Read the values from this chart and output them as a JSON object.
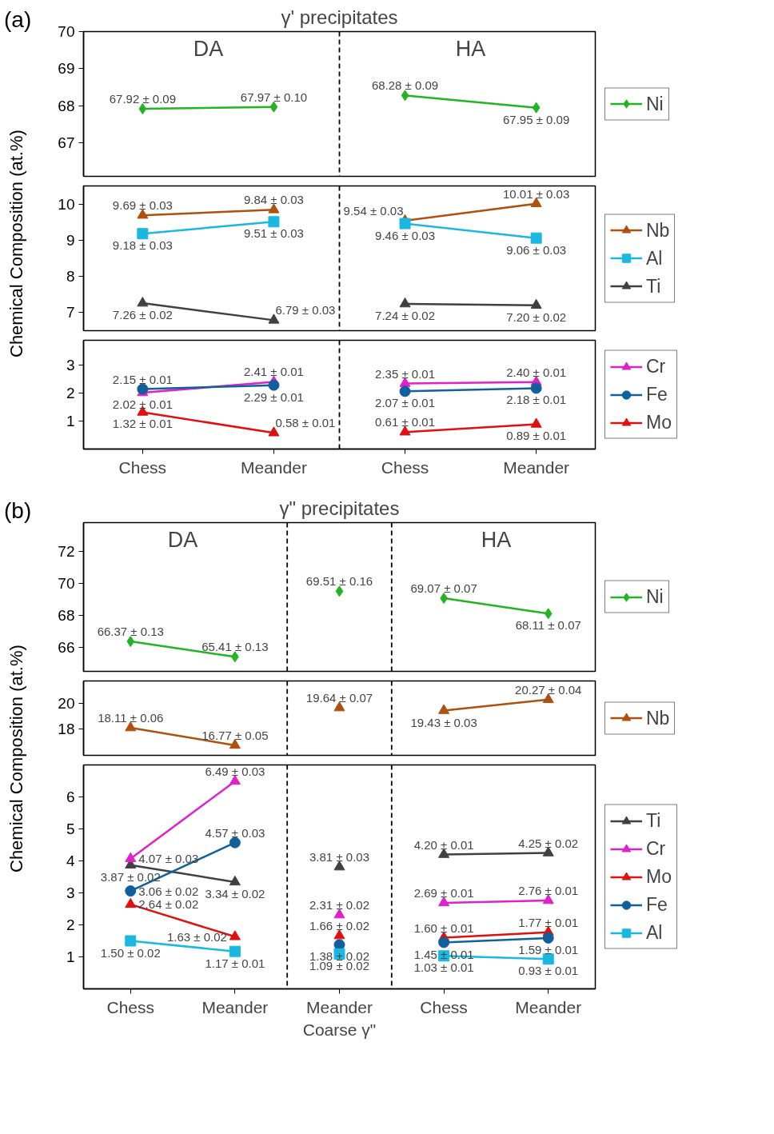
{
  "chart_data": [
    {
      "type": "line",
      "title": "γ' precipitates",
      "annotations": [
        "(a)",
        "DA",
        "HA"
      ],
      "categories": [
        "Chess",
        "Meander",
        "Chess",
        "Meander"
      ],
      "tick_labels": "y",
      "ylim": [
        66.1,
        70
      ],
      "yticks": [
        67,
        68,
        69,
        70
      ],
      "legend": "right",
      "series": [
        {
          "name": "Ni",
          "color": "#22b422",
          "marker": "diamond",
          "values": [
            67.92,
            67.97,
            68.28,
            67.95
          ],
          "value_labels": [
            "67.92 ± 0.09",
            "67.97 ± 0.10",
            "68.28 ± 0.09",
            "67.95 ± 0.09"
          ]
        }
      ]
    },
    {
      "type": "line",
      "categories": [
        "Chess",
        "Meander",
        "Chess",
        "Meander"
      ],
      "tick_labels": "y",
      "ylabel": "Chemical Composition (at.%)",
      "ylim": [
        6.5,
        10.5
      ],
      "yticks": [
        7,
        8,
        9,
        10
      ],
      "legend": "right",
      "series": [
        {
          "name": "Nb",
          "color": "#b0500e",
          "marker": "triangle",
          "values": [
            9.69,
            9.84,
            9.54,
            10.01
          ],
          "value_labels": [
            "9.69 ± 0.03",
            "9.84 ± 0.03",
            "9.54 ± 0.03",
            "10.01 ± 0.03"
          ]
        },
        {
          "name": "Al",
          "color": "#1ab8e0",
          "marker": "square",
          "values": [
            9.18,
            9.51,
            9.46,
            9.06
          ],
          "value_labels": [
            "9.18 ± 0.03",
            "9.51 ± 0.03",
            "9.46 ± 0.03",
            "9.06 ± 0.03"
          ]
        },
        {
          "name": "Ti",
          "color": "#404040",
          "marker": "triangle",
          "values": [
            7.26,
            6.79,
            7.24,
            7.2
          ],
          "value_labels": [
            "7.26 ± 0.02",
            "6.79 ± 0.03",
            "7.24 ± 0.02",
            "7.20 ± 0.02"
          ]
        }
      ]
    },
    {
      "type": "line",
      "categories": [
        "Chess",
        "Meander",
        "Chess",
        "Meander"
      ],
      "ylim": [
        0,
        3.9
      ],
      "yticks": [
        1,
        2,
        3
      ],
      "legend": "right",
      "series": [
        {
          "name": "Cr",
          "color": "#e020c8",
          "marker": "triangle",
          "values": [
            2.02,
            2.41,
            2.35,
            2.4
          ],
          "value_labels": [
            "2.02 ± 0.01",
            "2.41 ± 0.01",
            "2.35 ± 0.01",
            "2.40 ± 0.01"
          ]
        },
        {
          "name": "Fe",
          "color": "#10609e",
          "marker": "circle",
          "values": [
            2.15,
            2.29,
            2.07,
            2.18
          ],
          "value_labels": [
            "2.15 ± 0.01",
            "2.29 ± 0.01",
            "2.07 ± 0.01",
            "2.18 ± 0.01"
          ]
        },
        {
          "name": "Mo",
          "color": "#e01010",
          "marker": "triangle",
          "values": [
            1.32,
            0.58,
            0.61,
            0.89
          ],
          "value_labels": [
            "1.32 ± 0.01",
            "0.58 ± 0.01",
            "0.61 ± 0.01",
            "0.89 ± 0.01"
          ]
        }
      ]
    },
    {
      "type": "line",
      "title": "γ\" precipitates",
      "annotations": [
        "(b)",
        "DA",
        "HA"
      ],
      "categories": [
        "Chess",
        "Meander",
        "Meander",
        "Chess",
        "Meander"
      ],
      "tick_labels": "y",
      "ylim": [
        64.5,
        73.8
      ],
      "yticks": [
        66,
        68,
        70,
        72
      ],
      "legend": "right",
      "series": [
        {
          "name": "Ni",
          "color": "#22b422",
          "marker": "diamond",
          "values": [
            66.37,
            65.41,
            null,
            69.07,
            68.11
          ],
          "value_labels": [
            "66.37 ± 0.13",
            "65.41 ± 0.13",
            null,
            "69.07 ± 0.07",
            "68.11 ± 0.07"
          ]
        },
        {
          "type": "scatter",
          "color": "#22b422",
          "marker": "diamond",
          "values": [
            null,
            null,
            69.51,
            null,
            null
          ],
          "value_labels": [
            null,
            null,
            "69.51 ± 0.16",
            null,
            null
          ]
        }
      ]
    },
    {
      "type": "line",
      "categories": [
        "Chess",
        "Meander",
        "Meander",
        "Chess",
        "Meander"
      ],
      "tick_labels": "y",
      "ylim": [
        16.0,
        21.7
      ],
      "yticks": [
        18,
        20
      ],
      "legend": "right",
      "series": [
        {
          "name": "Nb",
          "color": "#b0500e",
          "marker": "triangle",
          "values": [
            18.11,
            16.77,
            null,
            19.43,
            20.27
          ],
          "value_labels": [
            "18.11 ± 0.06",
            "16.77 ± 0.05",
            null,
            "19.43 ± 0.03",
            "20.27 ± 0.04"
          ]
        },
        {
          "type": "scatter",
          "color": "#b0500e",
          "marker": "triangle",
          "values": [
            null,
            null,
            19.64,
            null,
            null
          ],
          "value_labels": [
            null,
            null,
            "19.64 ± 0.07",
            null,
            null
          ]
        }
      ]
    },
    {
      "type": "line",
      "categories": [
        "Chess",
        "Meander",
        "Meander",
        "Chess",
        "Meander"
      ],
      "xlabel": "Coarse γ\"",
      "ylabel": "Chemical Composition (at.%)",
      "ylim": [
        0,
        7.0
      ],
      "yticks": [
        1,
        2,
        3,
        4,
        5,
        6
      ],
      "legend": "right",
      "series": [
        {
          "name": "Ti",
          "color": "#404040",
          "marker": "triangle",
          "values": [
            3.87,
            3.34,
            null,
            4.2,
            4.25
          ],
          "value_labels": [
            "3.87 ± 0.02",
            "3.34 ± 0.02",
            null,
            "4.20 ± 0.01",
            "4.25 ± 0.02"
          ]
        },
        {
          "name": "Cr",
          "color": "#e020c8",
          "marker": "triangle",
          "values": [
            4.07,
            6.49,
            null,
            2.69,
            2.76
          ],
          "value_labels": [
            "4.07 ± 0.03",
            "6.49 ± 0.03",
            null,
            "2.69 ± 0.01",
            "2.76 ± 0.01"
          ]
        },
        {
          "name": "Mo",
          "color": "#e01010",
          "marker": "triangle",
          "values": [
            2.64,
            1.63,
            null,
            1.6,
            1.77
          ],
          "value_labels": [
            "2.64 ± 0.02",
            "1.63 ± 0.02",
            null,
            "1.60 ± 0.01",
            "1.77 ± 0.01"
          ]
        },
        {
          "name": "Fe",
          "color": "#10609e",
          "marker": "circle",
          "values": [
            3.06,
            4.57,
            null,
            1.45,
            1.59
          ],
          "value_labels": [
            "3.06 ± 0.02",
            "4.57 ± 0.03",
            null,
            "1.45 ± 0.01",
            "1.59 ± 0.01"
          ]
        },
        {
          "name": "Al",
          "color": "#1ab8e0",
          "marker": "square",
          "values": [
            1.5,
            1.17,
            null,
            1.03,
            0.93
          ],
          "value_labels": [
            "1.50 ± 0.02",
            "1.17 ± 0.01",
            null,
            "1.03 ± 0.01",
            "0.93 ± 0.01"
          ]
        },
        {
          "type": "scatter",
          "color": "#404040",
          "marker": "triangle",
          "values": [
            null,
            null,
            3.81,
            null,
            null
          ],
          "value_labels": [
            null,
            null,
            "3.81 ± 0.03",
            null,
            null
          ]
        },
        {
          "type": "scatter",
          "color": "#e020c8",
          "marker": "triangle",
          "values": [
            null,
            null,
            2.31,
            null,
            null
          ],
          "value_labels": [
            null,
            null,
            "2.31 ± 0.02",
            null,
            null
          ]
        },
        {
          "type": "scatter",
          "color": "#e01010",
          "marker": "triangle",
          "values": [
            null,
            null,
            1.66,
            null,
            null
          ],
          "value_labels": [
            null,
            null,
            "1.66 ± 0.02",
            null,
            null
          ]
        },
        {
          "type": "scatter",
          "color": "#10609e",
          "marker": "circle",
          "values": [
            null,
            null,
            1.38,
            null,
            null
          ],
          "value_labels": [
            null,
            null,
            "1.38 ± 0.02",
            null,
            null
          ]
        },
        {
          "type": "scatter",
          "color": "#1ab8e0",
          "marker": "square",
          "values": [
            null,
            null,
            1.09,
            null,
            null
          ],
          "value_labels": [
            null,
            null,
            "1.09 ± 0.02",
            null,
            null
          ]
        }
      ]
    }
  ]
}
